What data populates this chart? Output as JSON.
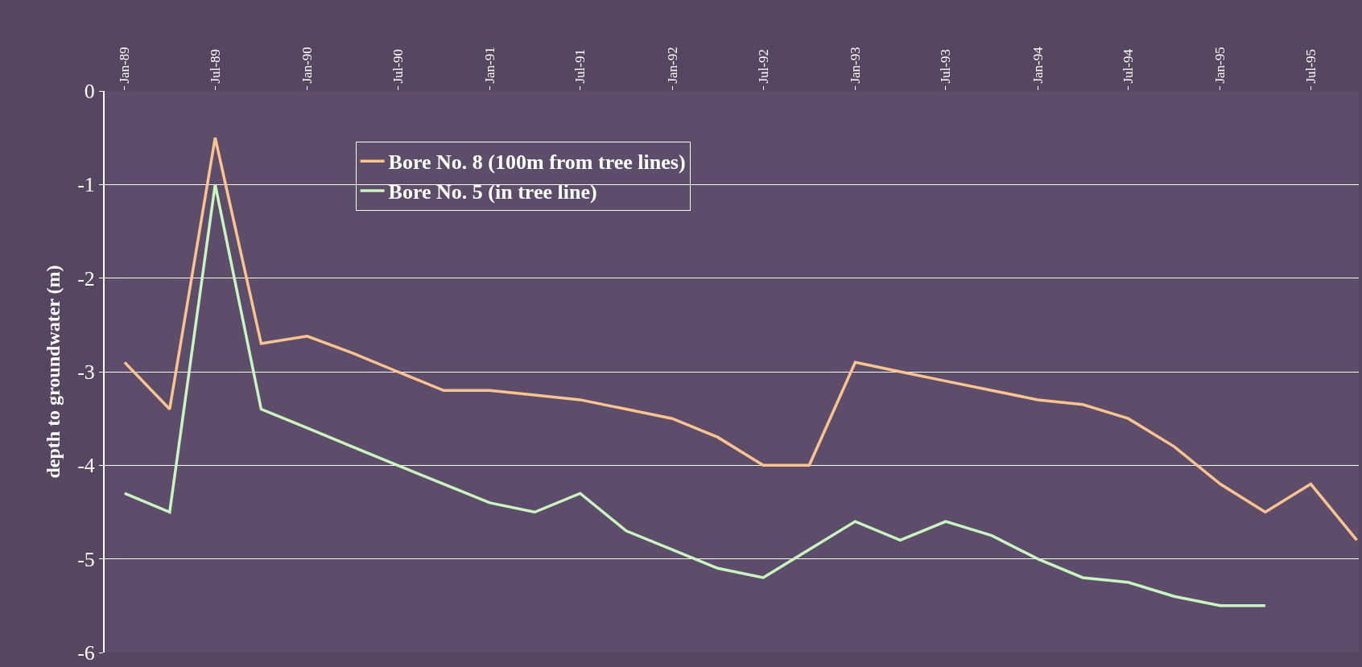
{
  "chart_data": {
    "type": "line",
    "ylabel": "depth to groundwater (m)",
    "x": [
      "1989-01",
      "1989-04",
      "1989-07",
      "1989-10",
      "1990-01",
      "1990-04",
      "1990-07",
      "1990-10",
      "1991-01",
      "1991-04",
      "1991-07",
      "1991-10",
      "1992-01",
      "1992-04",
      "1992-07",
      "1992-10",
      "1993-01",
      "1993-04",
      "1993-07",
      "1993-10",
      "1994-01",
      "1994-04",
      "1994-07",
      "1994-10",
      "1995-01",
      "1995-04",
      "1995-07",
      "1995-10"
    ],
    "series": [
      {
        "name": "Bore No. 8 (100m from tree lines)",
        "color": "#f9c48f",
        "values": [
          -2.9,
          -3.4,
          -0.5,
          -2.7,
          -2.62,
          -2.8,
          -3.0,
          -3.2,
          -3.2,
          -3.25,
          -3.3,
          -3.4,
          -3.5,
          -3.7,
          -4.0,
          -4.0,
          -2.9,
          -3.0,
          -3.1,
          -3.2,
          -3.3,
          -3.35,
          -3.5,
          -3.8,
          -4.2,
          -4.5,
          -4.2,
          -4.8
        ]
      },
      {
        "name": "Bore No. 5 (in tree line)",
        "color": "#c8f5c0",
        "values": [
          -4.3,
          -4.5,
          -1.0,
          -3.4,
          -3.6,
          -3.8,
          -4.0,
          -4.2,
          -4.4,
          -4.5,
          -4.3,
          -4.7,
          -4.9,
          -5.1,
          -5.2,
          -4.9,
          -4.6,
          -4.8,
          -4.6,
          -4.75,
          -5.0,
          -5.2,
          -5.25,
          -5.4,
          -5.5,
          -5.5,
          null,
          null
        ]
      }
    ],
    "xlim": [
      "1988-11-22",
      "1995-10-05"
    ],
    "xticks": [
      {
        "value": "1989-01-01",
        "label": "Jan-89"
      },
      {
        "value": "1989-07-01",
        "label": "Jul-89"
      },
      {
        "value": "1990-01-01",
        "label": "Jan-90"
      },
      {
        "value": "1990-07-01",
        "label": "Jul-90"
      },
      {
        "value": "1991-01-01",
        "label": "Jan-91"
      },
      {
        "value": "1991-07-01",
        "label": "Jul-91"
      },
      {
        "value": "1992-01-01",
        "label": "Jan-92"
      },
      {
        "value": "1992-07-01",
        "label": "Jul-92"
      },
      {
        "value": "1993-01-01",
        "label": "Jan-93"
      },
      {
        "value": "1993-07-01",
        "label": "Jul-93"
      },
      {
        "value": "1994-01-01",
        "label": "Jan-94"
      },
      {
        "value": "1994-07-01",
        "label": "Jul-94"
      },
      {
        "value": "1995-01-01",
        "label": "Jan-95"
      },
      {
        "value": "1995-07-01",
        "label": "Jul-95"
      }
    ],
    "ylim": [
      -6,
      0
    ],
    "yticks": [
      -6,
      -5,
      -4,
      -3,
      -2,
      -1,
      0
    ],
    "grid": "y",
    "legend": "top",
    "marker": "none",
    "line_style": "solid"
  }
}
